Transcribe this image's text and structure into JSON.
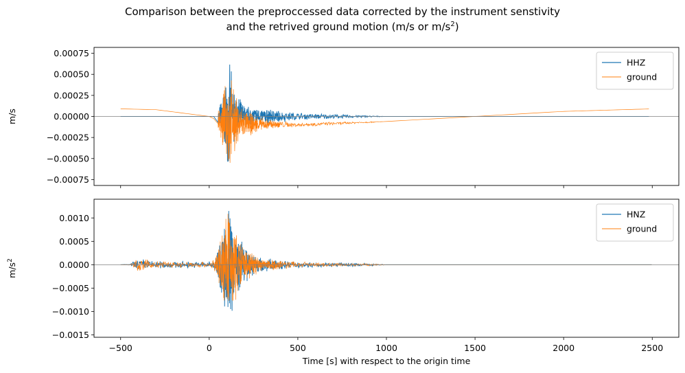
{
  "title_line1": "Comparison between the preproccessed data corrected by the instrument senstivity",
  "title_line2_pre": "and the retrived ground motion (m/s or m/s",
  "title_line2_sup": "2",
  "title_line2_post": ")",
  "colors": {
    "blue": "#1f77b4",
    "orange": "#ff7f0e",
    "zero_line": "#808080"
  },
  "chart_data": [
    {
      "type": "line",
      "ylabel": "m/s",
      "xlim": [
        -650,
        2650
      ],
      "ylim": [
        -0.00082,
        0.00082
      ],
      "yticks": [
        -0.00075,
        -0.0005,
        -0.00025,
        0,
        0.00025,
        0.0005,
        0.00075
      ],
      "ytick_labels": [
        "−0.00075",
        "−0.00050",
        "−0.00025",
        "0.00000",
        "0.00025",
        "0.00050",
        "0.00075"
      ],
      "legend": "top-right",
      "series": [
        {
          "name": "HHZ",
          "color": "#1f77b4",
          "envelope": {
            "t": [
              -500,
              40,
              60,
              80,
              100,
              110,
              120,
              150,
              200,
              300,
              400,
              500,
              700,
              900,
              1000,
              2500
            ],
            "amp": [
              0,
              0,
              0.00015,
              0.0004,
              0.0005,
              0.0007,
              0.0006,
              0.0003,
              0.00015,
              0.0001,
              8e-05,
              5e-05,
              3e-05,
              1e-05,
              0,
              0
            ]
          }
        },
        {
          "name": "ground",
          "color": "#ff7f0e",
          "baseline": {
            "t": [
              -500,
              -300,
              0,
              50,
              200,
              500,
              1000,
              1500,
              2000,
              2500
            ],
            "v": [
              9e-05,
              8e-05,
              0,
              -5e-05,
              -9e-05,
              -0.0001,
              -6e-05,
              0,
              6e-05,
              9e-05
            ]
          },
          "envelope": {
            "t": [
              -500,
              40,
              60,
              80,
              100,
              110,
              120,
              150,
              200,
              300,
              400,
              500,
              700,
              900,
              1000,
              2500
            ],
            "amp": [
              0,
              0,
              0.0002,
              0.0004,
              0.0005,
              0.00075,
              0.0006,
              0.00035,
              0.00018,
              8e-05,
              5e-05,
              3e-05,
              2e-05,
              1e-05,
              0,
              0
            ]
          }
        }
      ]
    },
    {
      "type": "line",
      "xlabel": "Time [s] with respect to the origin time",
      "ylabel_base": "m/s",
      "ylabel_sup": "2",
      "xlim": [
        -650,
        2650
      ],
      "ylim": [
        -0.00155,
        0.0014
      ],
      "xticks": [
        -500,
        0,
        500,
        1000,
        1500,
        2000,
        2500
      ],
      "xtick_labels": [
        "−500",
        "0",
        "500",
        "1000",
        "1500",
        "2000",
        "2500"
      ],
      "yticks": [
        -0.0015,
        -0.001,
        -0.0005,
        0,
        0.0005,
        0.001
      ],
      "ytick_labels": [
        "−0.0015",
        "−0.0010",
        "−0.0005",
        "0.0000",
        "0.0005",
        "0.0010"
      ],
      "legend": "top-right",
      "series": [
        {
          "name": "HNZ",
          "color": "#1f77b4",
          "envelope": {
            "t": [
              -500,
              -450,
              -400,
              -300,
              -100,
              0,
              40,
              60,
              90,
              110,
              120,
              150,
              200,
              300,
              400,
              500,
              600,
              800,
              950,
              1000,
              2500
            ],
            "amp": [
              0,
              1e-05,
              0.00015,
              9e-05,
              7e-05,
              8e-05,
              0.0002,
              0.0007,
              0.0011,
              0.0014,
              0.0013,
              0.0008,
              0.0004,
              0.00016,
              0.00011,
              8e-05,
              5e-05,
              4e-05,
              2e-05,
              0,
              0
            ]
          }
        },
        {
          "name": "ground",
          "color": "#ff7f0e",
          "envelope": {
            "t": [
              -500,
              -450,
              -400,
              -300,
              -100,
              0,
              40,
              60,
              90,
              110,
              120,
              150,
              200,
              300,
              400,
              500,
              600,
              800,
              950,
              1000,
              2500
            ],
            "amp": [
              0,
              1e-05,
              0.00015,
              9e-05,
              7e-05,
              8e-05,
              0.0002,
              0.0007,
              0.0011,
              0.0014,
              0.0013,
              0.0008,
              0.0004,
              0.00016,
              0.00011,
              8e-05,
              5e-05,
              4e-05,
              2e-05,
              0,
              0
            ]
          }
        }
      ]
    }
  ]
}
